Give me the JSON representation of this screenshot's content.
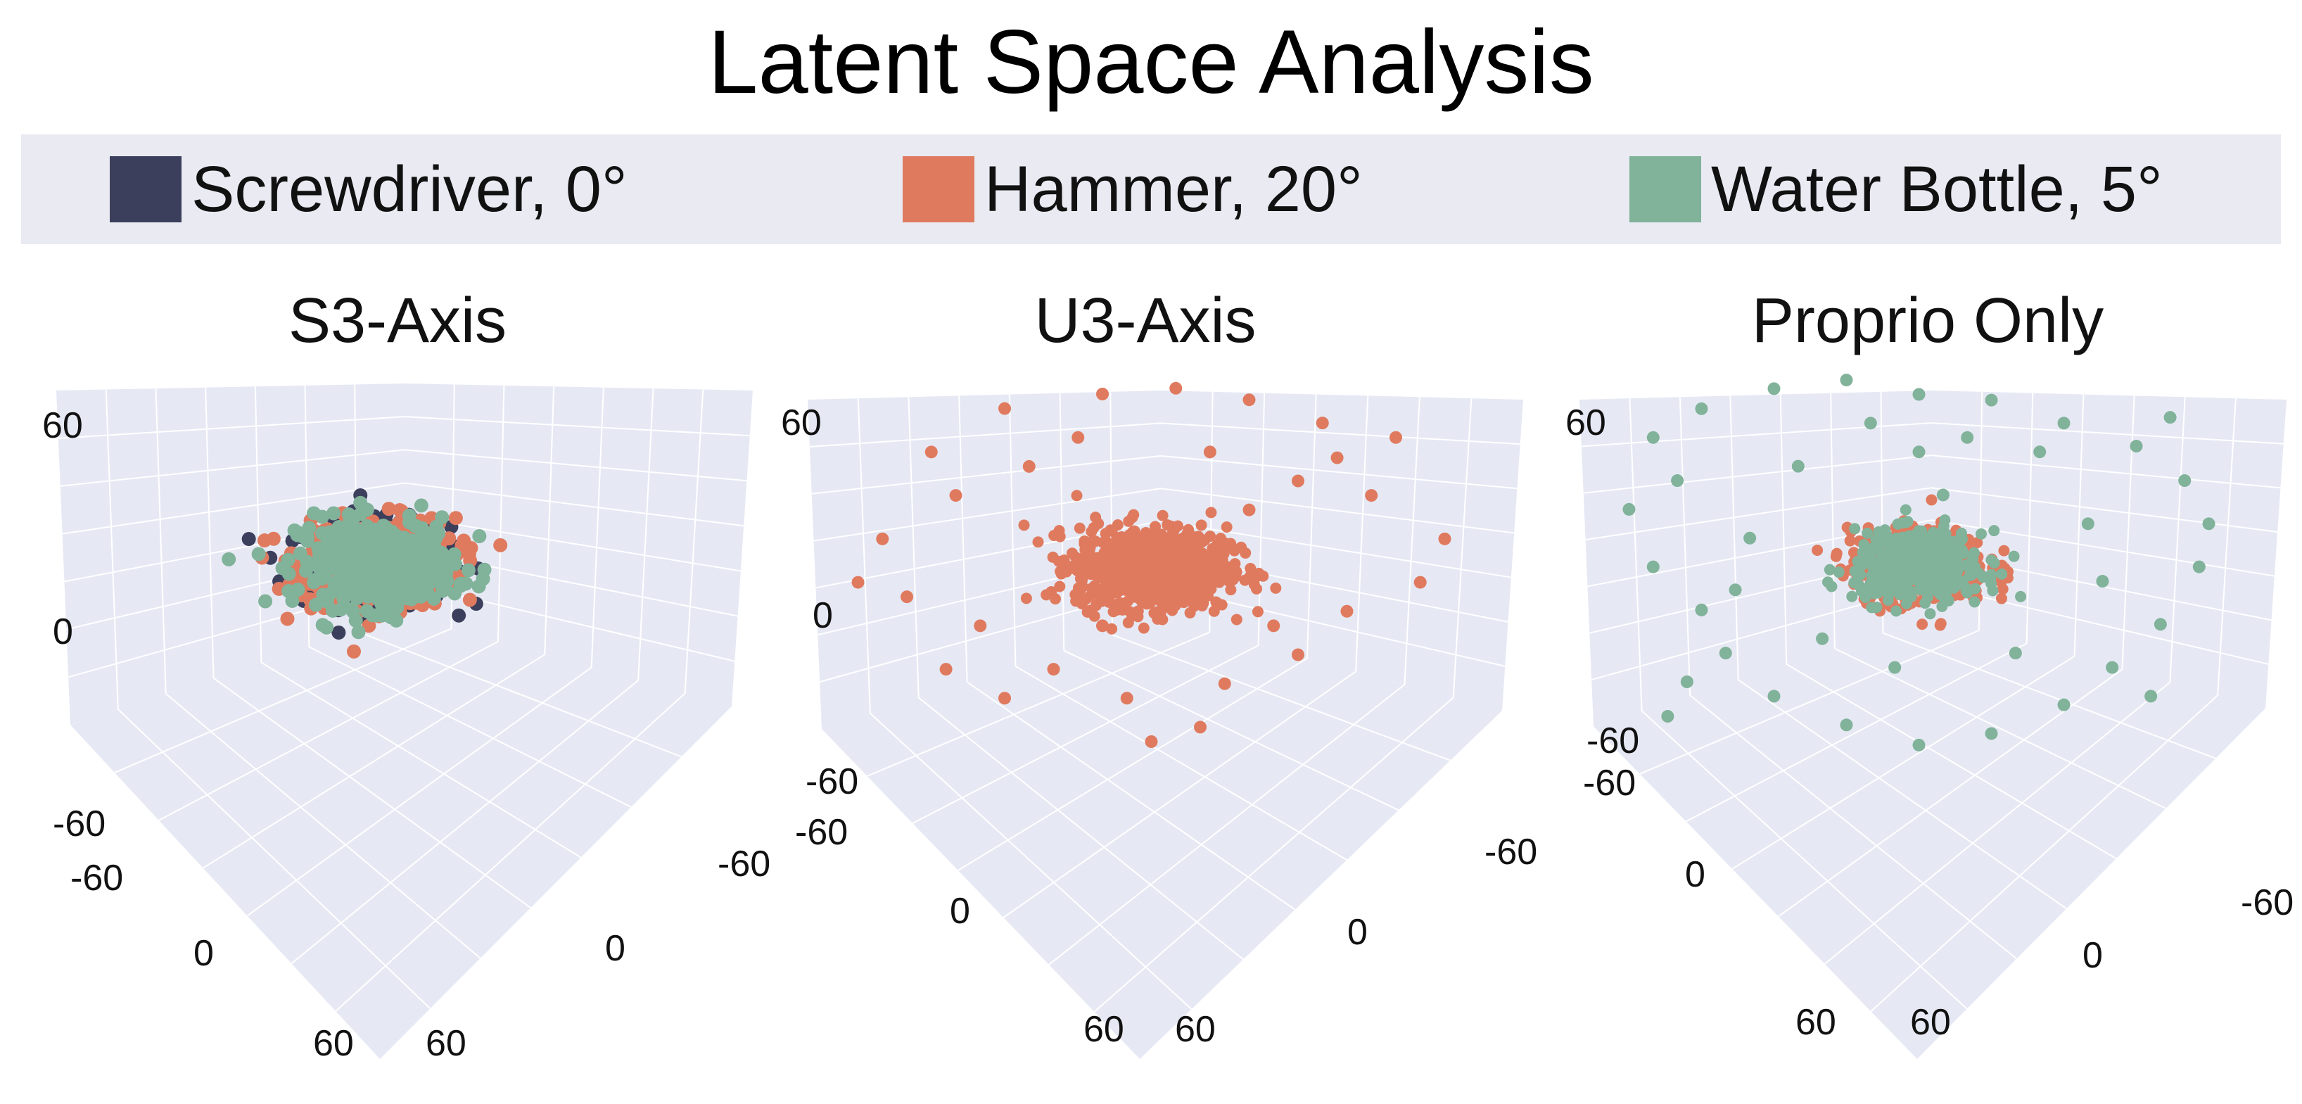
{
  "title": "Latent Space Analysis",
  "legend": [
    {
      "label": "Screwdriver, 0°",
      "color": "#3c3f5c"
    },
    {
      "label": "Hammer, 20°",
      "color": "#e07a5f"
    },
    {
      "label": "Water Bottle, 5°",
      "color": "#81b29a"
    }
  ],
  "colors": {
    "background": "#ffffff",
    "scene": "#e6e9f4",
    "grid": "#ffffff",
    "legend_bg": "#e9eaf2"
  },
  "chart_data": [
    {
      "type": "scatter",
      "title": "S3-Axis",
      "axis_range": [
        -60,
        60
      ],
      "tick_labels": {
        "vertical": [
          "60",
          "0",
          "-60"
        ],
        "left_axis": [
          "-60",
          "0",
          "60"
        ],
        "right_axis": [
          "-60",
          "0",
          "60"
        ]
      },
      "grid": true,
      "series": [
        {
          "name": "Screwdriver, 0°",
          "color": "#3c3f5c",
          "cluster": {
            "radius": 14,
            "count": 420
          },
          "points": []
        },
        {
          "name": "Hammer, 20°",
          "color": "#e07a5f",
          "cluster": {
            "radius": 15,
            "count": 420
          },
          "points": []
        },
        {
          "name": "Water Bottle, 5°",
          "color": "#81b29a",
          "cluster": {
            "radius": 15,
            "count": 420
          },
          "points": []
        }
      ]
    },
    {
      "type": "scatter",
      "title": "U3-Axis",
      "axis_range": [
        -60,
        60
      ],
      "tick_labels": {
        "vertical": [
          "60",
          "0",
          "-60"
        ],
        "left_axis": [
          "-60",
          "0",
          "60"
        ],
        "right_axis": [
          "-60",
          "0",
          "60"
        ]
      },
      "grid": true,
      "series": [
        {
          "name": "Screwdriver, 0°",
          "color": "#3c3f5c",
          "cluster": {
            "radius": 4,
            "count": 14
          },
          "points": []
        },
        {
          "name": "Water Bottle, 5°",
          "color": "#81b29a",
          "cluster": {
            "radius": 6,
            "count": 40
          },
          "points": []
        },
        {
          "name": "Hammer, 20°",
          "color": "#e07a5f",
          "cluster": {
            "radius": 14,
            "count": 900
          },
          "points": [
            [
              -45,
              40
            ],
            [
              -30,
              55
            ],
            [
              -10,
              60
            ],
            [
              5,
              62
            ],
            [
              20,
              58
            ],
            [
              35,
              50
            ],
            [
              50,
              45
            ],
            [
              -55,
              10
            ],
            [
              -40,
              25
            ],
            [
              -25,
              35
            ],
            [
              30,
              30
            ],
            [
              45,
              25
            ],
            [
              -50,
              -10
            ],
            [
              -35,
              -20
            ],
            [
              40,
              -15
            ],
            [
              55,
              -5
            ],
            [
              -20,
              -35
            ],
            [
              -5,
              -45
            ],
            [
              15,
              -40
            ],
            [
              30,
              -30
            ],
            [
              -30,
              -45
            ],
            [
              10,
              -55
            ],
            [
              -10,
              -20
            ],
            [
              25,
              -20
            ],
            [
              -60,
              -5
            ],
            [
              60,
              10
            ],
            [
              -15,
              45
            ],
            [
              12,
              40
            ],
            [
              38,
              38
            ],
            [
              -42,
              -35
            ],
            [
              0,
              -60
            ],
            [
              20,
              20
            ]
          ]
        }
      ]
    },
    {
      "type": "scatter",
      "title": "Proprio Only",
      "axis_range": [
        -60,
        60
      ],
      "tick_labels": {
        "vertical": [
          "60",
          "-60"
        ],
        "left_axis": [
          "-60",
          "0",
          "60"
        ],
        "right_axis": [
          "-60",
          "0",
          "60"
        ]
      },
      "grid": true,
      "series": [
        {
          "name": "Screwdriver, 0°",
          "color": "#3c3f5c",
          "cluster": {
            "radius": 6,
            "count": 30
          },
          "points": []
        },
        {
          "name": "Hammer, 20°",
          "color": "#e07a5f",
          "cluster": {
            "radius": 13,
            "count": 450
          },
          "points": []
        },
        {
          "name": "Water Bottle, 5°",
          "color": "#81b29a",
          "cluster": {
            "radius": 12,
            "count": 420
          },
          "points": [
            [
              -55,
              45
            ],
            [
              -45,
              55
            ],
            [
              -30,
              62
            ],
            [
              -15,
              65
            ],
            [
              0,
              60
            ],
            [
              15,
              58
            ],
            [
              30,
              50
            ],
            [
              45,
              42
            ],
            [
              55,
              30
            ],
            [
              -60,
              20
            ],
            [
              -50,
              30
            ],
            [
              60,
              15
            ],
            [
              -55,
              0
            ],
            [
              58,
              0
            ],
            [
              -45,
              -15
            ],
            [
              50,
              -20
            ],
            [
              -40,
              -30
            ],
            [
              40,
              -35
            ],
            [
              -30,
              -45
            ],
            [
              30,
              -48
            ],
            [
              -15,
              -55
            ],
            [
              15,
              -58
            ],
            [
              0,
              -62
            ],
            [
              -35,
              10
            ],
            [
              35,
              15
            ],
            [
              -25,
              35
            ],
            [
              25,
              40
            ],
            [
              -10,
              50
            ],
            [
              10,
              45
            ],
            [
              -48,
              -40
            ],
            [
              48,
              -45
            ],
            [
              20,
              -30
            ],
            [
              -20,
              -25
            ],
            [
              5,
              25
            ],
            [
              -5,
              -35
            ],
            [
              38,
              -5
            ],
            [
              -38,
              -8
            ],
            [
              52,
              52
            ],
            [
              -52,
              -52
            ],
            [
              0,
              40
            ]
          ]
        }
      ]
    }
  ]
}
